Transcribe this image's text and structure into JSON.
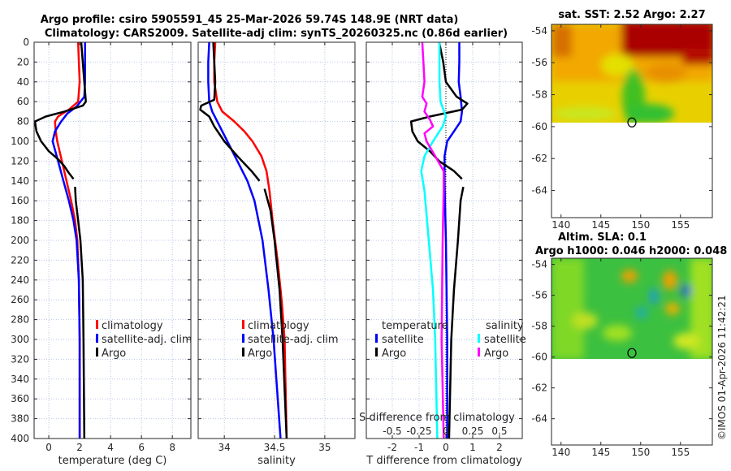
{
  "header": {
    "title_line1": "Argo profile: csiro 5905591_45 25-Mar-2026 59.74S 148.9E (NRT data)",
    "title_line2": "Climatology: CARS2009. Satellite-adj clim: synTS_20260325.nc (0.86d earlier)"
  },
  "copyright": "©IMOS 01-Apr-2026 11:42:21",
  "colors": {
    "red": "#ff0000",
    "blue": "#0000ff",
    "black": "#000000",
    "cyan": "#00ffff",
    "magenta": "#ff00ff",
    "grid": "#b8c4e8"
  },
  "chart_data": [
    {
      "id": "temperature",
      "type": "line",
      "xlabel": "temperature (deg C)",
      "ylabel": "",
      "xlim": [
        -0.95,
        9.2
      ],
      "ylim": [
        0,
        400
      ],
      "y_reversed": true,
      "xticks": [
        0,
        2,
        4,
        6,
        8
      ],
      "xtick_labels": [
        "0",
        "2",
        "4",
        "6",
        "8"
      ],
      "yticks": [
        0,
        20,
        40,
        60,
        80,
        100,
        120,
        140,
        160,
        180,
        200,
        220,
        240,
        260,
        280,
        300,
        320,
        340,
        360,
        380,
        400
      ],
      "ytick_labels": [
        "0",
        "20",
        "40",
        "60",
        "80",
        "100",
        "120",
        "140",
        "160",
        "180",
        "200",
        "220",
        "240",
        "260",
        "280",
        "300",
        "320",
        "340",
        "360",
        "380",
        "400"
      ],
      "grid": true,
      "legend": {
        "placement": "bottom-center",
        "entries": [
          "climatology",
          "satellite-adj. clim",
          "Argo"
        ]
      },
      "series": [
        {
          "name": "climatology",
          "color": "red",
          "points": [
            [
              0,
              1.9
            ],
            [
              20,
              1.95
            ],
            [
              40,
              2.0
            ],
            [
              60,
              1.9
            ],
            [
              68,
              1.3
            ],
            [
              75,
              0.6
            ],
            [
              80,
              0.4
            ],
            [
              90,
              0.45
            ],
            [
              100,
              0.55
            ],
            [
              120,
              0.85
            ],
            [
              140,
              1.15
            ],
            [
              160,
              1.45
            ],
            [
              180,
              1.7
            ],
            [
              200,
              1.85
            ],
            [
              240,
              1.95
            ],
            [
              300,
              2.0
            ],
            [
              400,
              2.0
            ]
          ]
        },
        {
          "name": "satellite-adj. clim",
          "color": "blue",
          "points": [
            [
              0,
              2.35
            ],
            [
              20,
              2.35
            ],
            [
              40,
              2.35
            ],
            [
              55,
              2.3
            ],
            [
              65,
              1.8
            ],
            [
              72,
              1.2
            ],
            [
              80,
              0.8
            ],
            [
              90,
              0.4
            ],
            [
              100,
              0.25
            ],
            [
              120,
              0.6
            ],
            [
              140,
              0.95
            ],
            [
              160,
              1.3
            ],
            [
              180,
              1.6
            ],
            [
              200,
              1.8
            ],
            [
              240,
              1.95
            ],
            [
              300,
              2.0
            ],
            [
              400,
              2.0
            ]
          ]
        },
        {
          "name": "Argo",
          "color": "black",
          "points": [
            [
              0,
              2.1
            ],
            [
              20,
              2.2
            ],
            [
              40,
              2.3
            ],
            [
              60,
              2.4
            ],
            [
              64,
              2.2
            ],
            [
              70,
              1.0
            ],
            [
              75,
              -0.2
            ],
            [
              80,
              -0.9
            ],
            [
              90,
              -0.8
            ],
            [
              100,
              -0.5
            ],
            [
              110,
              0.0
            ],
            [
              118,
              0.6
            ],
            [
              125,
              1.0
            ],
            [
              132,
              1.3
            ],
            [
              138,
              1.6
            ],
            null,
            [
              146,
              1.7
            ],
            [
              160,
              1.75
            ],
            [
              180,
              1.9
            ],
            [
              200,
              2.05
            ],
            [
              240,
              2.2
            ],
            [
              300,
              2.25
            ],
            [
              400,
              2.3
            ]
          ]
        }
      ]
    },
    {
      "id": "salinity",
      "type": "line",
      "xlabel": "salinity",
      "xlim": [
        33.74,
        35.3
      ],
      "ylim": [
        0,
        400
      ],
      "y_reversed": true,
      "xticks": [
        34,
        34.5,
        35
      ],
      "xtick_labels": [
        "34",
        "34.5",
        "35"
      ],
      "grid": true,
      "legend": {
        "placement": "bottom-right",
        "entries": [
          "climatology",
          "satellite-adj. clim",
          "Argo"
        ]
      },
      "series": [
        {
          "name": "climatology",
          "color": "red",
          "points": [
            [
              0,
              33.91
            ],
            [
              20,
              33.9
            ],
            [
              40,
              33.9
            ],
            [
              60,
              33.93
            ],
            [
              70,
              33.98
            ],
            [
              80,
              34.1
            ],
            [
              90,
              34.2
            ],
            [
              100,
              34.28
            ],
            [
              115,
              34.37
            ],
            [
              130,
              34.42
            ],
            [
              150,
              34.45
            ],
            [
              180,
              34.48
            ],
            [
              220,
              34.53
            ],
            [
              260,
              34.57
            ],
            [
              300,
              34.6
            ],
            [
              400,
              34.62
            ]
          ]
        },
        {
          "name": "satellite-adj. clim",
          "color": "blue",
          "points": [
            [
              0,
              33.85
            ],
            [
              20,
              33.84
            ],
            [
              40,
              33.84
            ],
            [
              60,
              33.85
            ],
            [
              70,
              33.88
            ],
            [
              80,
              33.93
            ],
            [
              100,
              34.03
            ],
            [
              120,
              34.13
            ],
            [
              140,
              34.23
            ],
            [
              160,
              34.3
            ],
            [
              200,
              34.38
            ],
            [
              250,
              34.44
            ],
            [
              300,
              34.49
            ],
            [
              400,
              34.56
            ]
          ]
        },
        {
          "name": "Argo",
          "color": "black",
          "points": [
            [
              0,
              33.89
            ],
            [
              20,
              33.9
            ],
            [
              40,
              33.91
            ],
            [
              58,
              33.9
            ],
            [
              64,
              33.77
            ],
            [
              68,
              33.76
            ],
            [
              75,
              33.85
            ],
            [
              85,
              33.9
            ],
            [
              100,
              34.0
            ],
            [
              115,
              34.13
            ],
            [
              130,
              34.27
            ],
            [
              140,
              34.35
            ],
            null,
            [
              148,
              34.4
            ],
            [
              170,
              34.46
            ],
            [
              200,
              34.5
            ],
            [
              250,
              34.55
            ],
            [
              300,
              34.58
            ],
            [
              400,
              34.62
            ]
          ]
        }
      ]
    },
    {
      "id": "difference",
      "type": "line",
      "xlabel": "T difference from climatology",
      "xlabel_top": "S difference from climatology",
      "xlim": [
        -2.97,
        2.85
      ],
      "ylim": [
        0,
        400
      ],
      "y_reversed": true,
      "xticks": [
        -2,
        -1,
        0,
        1,
        2
      ],
      "xtick_labels": [
        "-2",
        "-1",
        "0",
        "1",
        "2"
      ],
      "s_xticks": [
        -0.5,
        -0.25,
        0,
        0.25,
        0.5
      ],
      "s_xtick_labels": [
        "-0.5",
        "-0.25",
        "0",
        "0.25",
        "0.5"
      ],
      "s_to_t_scale": 4,
      "grid": true,
      "legend": {
        "placement": "bottom",
        "groups": [
          {
            "title": "temperature",
            "entries": [
              "satellite",
              "Argo"
            ]
          },
          {
            "title": "salinity",
            "entries": [
              "satellite",
              "Argo"
            ]
          }
        ]
      },
      "series": [
        {
          "name": "temperature satellite",
          "color": "blue",
          "axis": "T",
          "points": [
            [
              0,
              0.5
            ],
            [
              20,
              0.5
            ],
            [
              40,
              0.48
            ],
            [
              55,
              0.55
            ],
            [
              70,
              0.6
            ],
            [
              80,
              0.55
            ],
            [
              90,
              0.3
            ],
            [
              100,
              0.05
            ],
            [
              115,
              -0.05
            ],
            [
              140,
              -0.05
            ],
            [
              200,
              0.0
            ],
            [
              300,
              0.05
            ],
            [
              400,
              0.05
            ]
          ]
        },
        {
          "name": "temperature Argo",
          "color": "black",
          "axis": "T",
          "points": [
            [
              0,
              -0.25
            ],
            [
              20,
              -0.1
            ],
            [
              40,
              0.0
            ],
            [
              55,
              0.4
            ],
            [
              62,
              0.8
            ],
            [
              68,
              0.6
            ],
            [
              75,
              -0.6
            ],
            [
              80,
              -1.3
            ],
            [
              90,
              -1.25
            ],
            [
              100,
              -1.05
            ],
            [
              110,
              -0.6
            ],
            [
              120,
              -0.25
            ],
            [
              130,
              0.3
            ],
            [
              138,
              0.6
            ],
            null,
            [
              146,
              0.65
            ],
            [
              160,
              0.55
            ],
            [
              200,
              0.45
            ],
            [
              250,
              0.3
            ],
            [
              300,
              0.2
            ],
            [
              400,
              0.12
            ]
          ]
        },
        {
          "name": "salinity satellite",
          "color": "cyan",
          "axis": "S",
          "points": [
            [
              0,
              -0.06
            ],
            [
              20,
              -0.06
            ],
            [
              40,
              -0.06
            ],
            [
              60,
              -0.05
            ],
            [
              75,
              0.0
            ],
            [
              85,
              -0.03
            ],
            [
              100,
              -0.12
            ],
            [
              115,
              -0.2
            ],
            [
              130,
              -0.23
            ],
            [
              150,
              -0.2
            ],
            [
              200,
              -0.16
            ],
            [
              250,
              -0.12
            ],
            [
              300,
              -0.1
            ],
            [
              400,
              -0.08
            ]
          ]
        },
        {
          "name": "salinity Argo",
          "color": "magenta",
          "axis": "S",
          "points": [
            [
              0,
              -0.22
            ],
            [
              20,
              -0.21
            ],
            [
              40,
              -0.2
            ],
            [
              55,
              -0.22
            ],
            [
              62,
              -0.18
            ],
            [
              70,
              -0.2
            ],
            [
              78,
              -0.15
            ],
            [
              85,
              -0.12
            ],
            [
              92,
              -0.2
            ],
            [
              100,
              -0.18
            ],
            [
              115,
              -0.1
            ],
            [
              130,
              -0.02
            ],
            [
              150,
              -0.02
            ],
            [
              200,
              -0.03
            ],
            [
              300,
              -0.04
            ],
            [
              400,
              -0.02
            ]
          ]
        }
      ]
    },
    {
      "id": "sst_map",
      "type": "heatmap",
      "title": "sat. SST: 2.52 Argo: 2.27",
      "xlim": [
        138.8,
        159
      ],
      "ylim": [
        -65.7,
        -53.6
      ],
      "xticks": [
        140,
        145,
        150,
        155
      ],
      "xtick_labels": [
        "140",
        "145",
        "150",
        "155"
      ],
      "yticks": [
        -54,
        -56,
        -58,
        -60,
        -62,
        -64
      ],
      "ytick_labels": [
        "-54",
        "-56",
        "-58",
        "-60",
        "-62",
        "-64"
      ],
      "data_lat_min": -60.1,
      "marker": {
        "lon": 148.9,
        "lat": -59.74
      }
    },
    {
      "id": "sla_map",
      "type": "heatmap",
      "title": "Altim. SLA: 0.1",
      "subtitle": "Argo h1000: 0.046 h2000: 0.048",
      "xlim": [
        138.8,
        159
      ],
      "ylim": [
        -65.7,
        -53.6
      ],
      "xticks": [
        140,
        145,
        150,
        155
      ],
      "xtick_labels": [
        "140",
        "145",
        "150",
        "155"
      ],
      "yticks": [
        -54,
        -56,
        -58,
        -60,
        -62,
        -64
      ],
      "ytick_labels": [
        "-54",
        "-56",
        "-58",
        "-60",
        "-62",
        "-64"
      ],
      "data_lat_min": -60.1,
      "marker": {
        "lon": 148.9,
        "lat": -59.74
      }
    }
  ]
}
